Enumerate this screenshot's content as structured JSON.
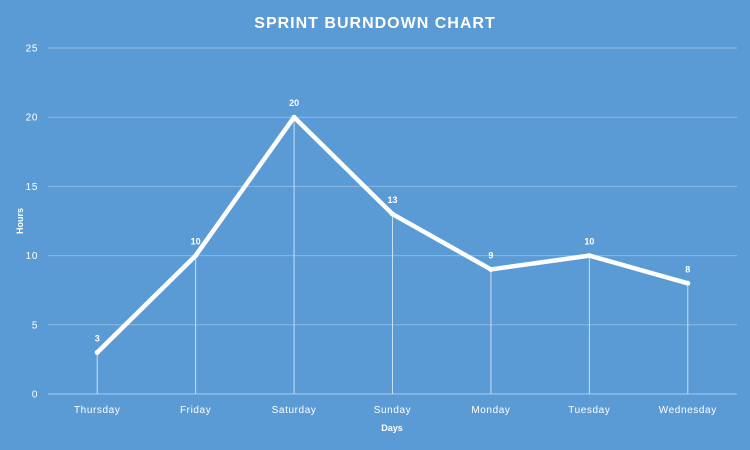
{
  "chart_data": {
    "type": "line",
    "title": "SPRINT BURNDOWN CHART",
    "xlabel": "Days",
    "ylabel": "Hours",
    "categories": [
      "Thursday",
      "Friday",
      "Saturday",
      "Sunday",
      "Monday",
      "Tuesday",
      "Wednesday"
    ],
    "series": [
      {
        "values": [
          3,
          10,
          20,
          13,
          9,
          10,
          8
        ]
      }
    ],
    "ylim": [
      0,
      25
    ],
    "yticks": [
      0,
      5,
      10,
      15,
      20,
      25
    ],
    "grid": true,
    "data_labels": true,
    "drop_lines": true,
    "legend": "none",
    "colors": {
      "background": "#5B9BD5",
      "line": "#FFFFFF",
      "grid": "#8DB9E3",
      "text": "#FFFFFF"
    }
  }
}
